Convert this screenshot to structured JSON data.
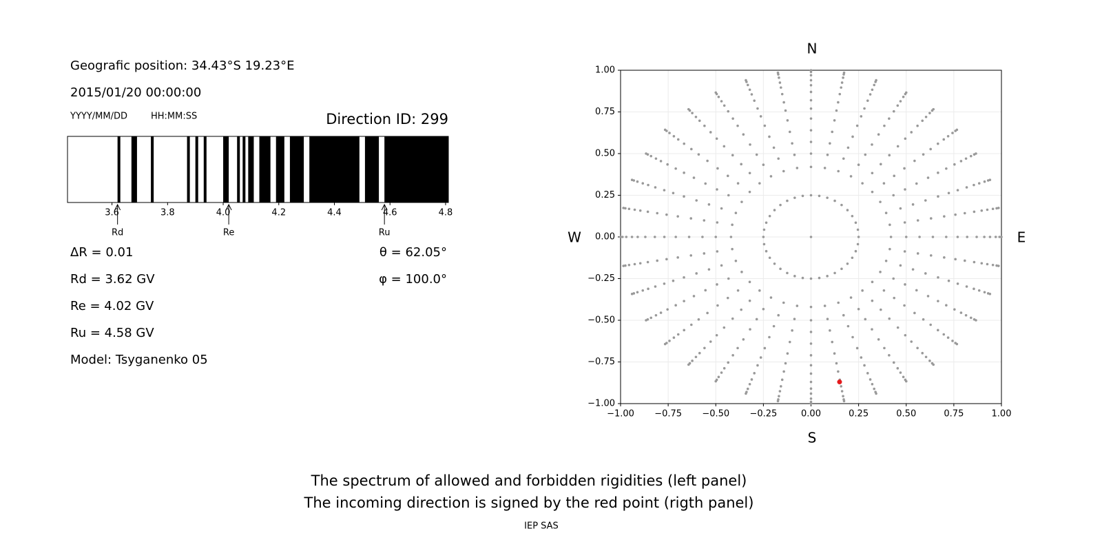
{
  "chart_data": [
    {
      "type": "spectrum",
      "position": "Geografic position: 34.43°S 19.23°E",
      "datetime": "2015/01/20 00:00:00",
      "date_format": "YYYY/MM/DD",
      "time_format": "HH:MM:SS",
      "title": "Direction ID: 299",
      "color": "#000000",
      "xlim": [
        3.44,
        4.81
      ],
      "xticks": [
        3.6,
        3.8,
        {
          "value": 4,
          "label": "4.0"
        },
        4.2,
        4.4,
        4.6,
        4.8
      ],
      "intervals": [
        [
          3.62,
          3.63
        ],
        [
          3.67,
          3.69
        ],
        [
          3.74,
          3.75
        ],
        [
          3.87,
          3.88
        ],
        [
          3.9,
          3.91
        ],
        [
          3.93,
          3.94
        ],
        [
          4.0,
          4.02
        ],
        [
          4.05,
          4.06
        ],
        [
          4.07,
          4.08
        ],
        [
          4.09,
          4.11
        ],
        [
          4.13,
          4.17
        ],
        [
          4.19,
          4.22
        ],
        [
          4.24,
          4.29
        ],
        [
          4.31,
          4.49
        ],
        [
          4.51,
          4.56
        ],
        [
          4.58,
          4.81
        ]
      ],
      "markers": [
        {
          "label": "Rd",
          "value": 3.62
        },
        {
          "label": "Re",
          "value": 4.02
        },
        {
          "label": "Ru",
          "value": 4.58
        }
      ],
      "info_left": [
        "ΔR = 0.01",
        "Rd = 3.62 GV",
        "Re = 4.02 GV",
        "Ru = 4.58 GV",
        "Model: Tsyganenko 05"
      ],
      "info_right": [
        "θ = 62.05°",
        "φ = 100.0°"
      ]
    },
    {
      "type": "scatter",
      "compass": {
        "north": "N",
        "south": "S",
        "west": "W",
        "east": "E"
      },
      "xlim": [
        -1,
        1
      ],
      "ylim": [
        -1,
        1
      ],
      "xticks": [
        {
          "value": -1,
          "label": "−1.00"
        },
        {
          "value": -0.75,
          "label": "−0.75"
        },
        {
          "value": -0.5,
          "label": "−0.50"
        },
        {
          "value": -0.25,
          "label": "−0.25"
        },
        {
          "value": 0,
          "label": "0.00"
        },
        {
          "value": 0.25,
          "label": "0.25"
        },
        {
          "value": 0.5,
          "label": "0.50"
        },
        {
          "value": 0.75,
          "label": "0.75"
        },
        {
          "value": 1,
          "label": "1.00"
        }
      ],
      "yticks": [
        {
          "value": -1,
          "label": "−1.00"
        },
        {
          "value": -0.75,
          "label": "−0.75"
        },
        {
          "value": -0.5,
          "label": "−0.50"
        },
        {
          "value": -0.25,
          "label": "−0.25"
        },
        {
          "value": 0,
          "label": "0.00"
        },
        {
          "value": 0.25,
          "label": "0.25"
        },
        {
          "value": 0.5,
          "label": "0.50"
        },
        {
          "value": 0.75,
          "label": "0.75"
        },
        {
          "value": 1,
          "label": "1.00"
        }
      ],
      "grid": true,
      "color": "#999999",
      "directions": {
        "r": [
          0.25,
          0.42,
          0.5,
          0.57,
          0.64,
          0.71,
          0.77,
          0.82,
          0.87,
          0.91,
          0.94,
          0.97,
          0.99,
          1.0
        ],
        "azimuth": [
          0,
          10,
          20,
          30,
          40,
          50,
          60,
          70,
          80,
          90,
          100,
          110,
          120,
          130,
          140,
          150,
          160,
          170,
          180,
          190,
          200,
          210,
          220,
          230,
          240,
          250,
          260,
          270,
          280,
          290,
          300,
          310,
          320,
          330,
          340,
          350
        ]
      },
      "center": {
        "x": 0,
        "y": 0
      },
      "selected": {
        "x": 0.15,
        "y": -0.87,
        "color": "#e41a1c"
      }
    }
  ],
  "caption": [
    "The spectrum of allowed and forbidden rigidities (left panel)",
    "The incoming direction is signed by the red point (rigth panel)"
  ],
  "credit": "IEP SAS"
}
